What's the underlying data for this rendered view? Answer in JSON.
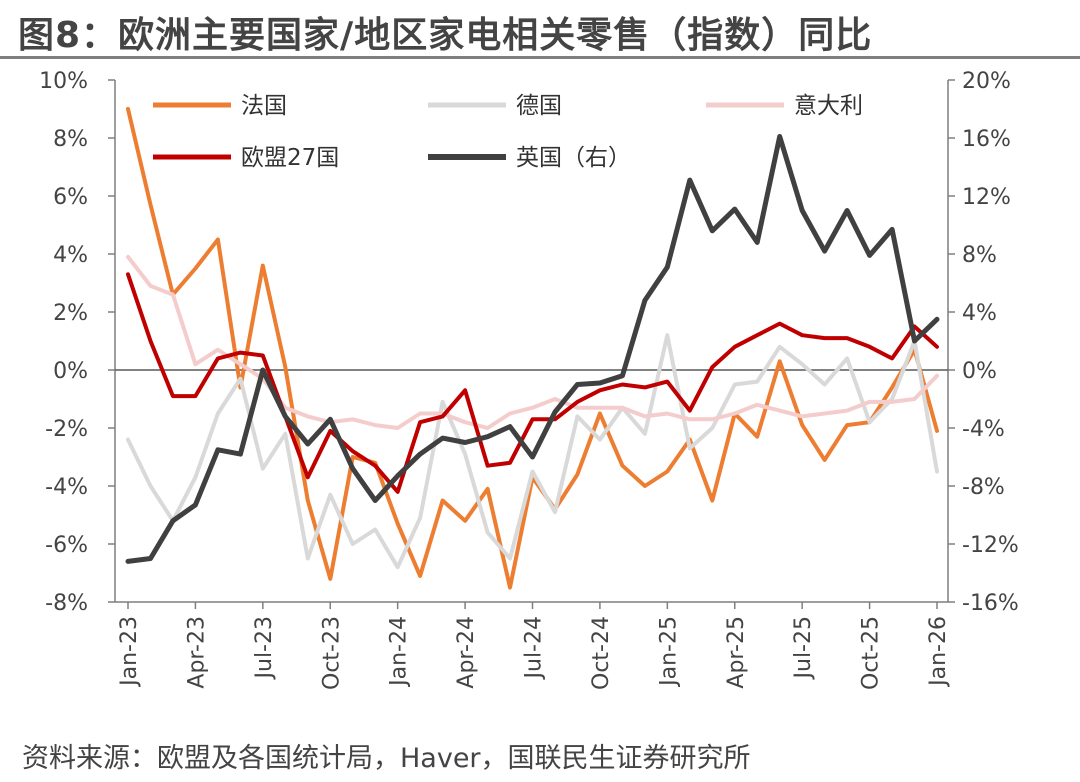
{
  "chart_data": {
    "type": "line",
    "title": "图8：欧洲主要国家/地区家电相关零售（指数）同比",
    "source": "资料来源：欧盟及各国统计局，Haver，国联民生证券研究所",
    "x": [
      "Jan-23",
      "Feb-23",
      "Mar-23",
      "Apr-23",
      "May-23",
      "Jun-23",
      "Jul-23",
      "Aug-23",
      "Sep-23",
      "Oct-23",
      "Nov-23",
      "Dec-23",
      "Jan-24",
      "Feb-24",
      "Mar-24",
      "Apr-24",
      "May-24",
      "Jun-24",
      "Jul-24",
      "Aug-24",
      "Sep-24",
      "Oct-24",
      "Nov-24",
      "Dec-24",
      "Jan-25",
      "Feb-25",
      "Mar-25",
      "Apr-25",
      "May-25",
      "Jun-25",
      "Jul-25",
      "Aug-25",
      "Sep-25",
      "Oct-25",
      "Nov-25",
      "Dec-25",
      "Jan-26"
    ],
    "x_tick_labels": [
      "Jan-23",
      "Apr-23",
      "Jul-23",
      "Oct-23",
      "Jan-24",
      "Apr-24",
      "Jul-24",
      "Oct-24",
      "Jan-25",
      "Apr-25",
      "Jul-25",
      "Oct-25",
      "Jan-26"
    ],
    "y_left": {
      "ylim": [
        -8,
        10
      ],
      "ticks": [
        10,
        8,
        6,
        4,
        2,
        0,
        -2,
        -4,
        -6,
        -8
      ],
      "tick_labels": [
        "10%",
        "8%",
        "6%",
        "4%",
        "2%",
        "0%",
        "-2%",
        "-4%",
        "-6%",
        "-8%"
      ]
    },
    "y_right": {
      "ylim": [
        -16,
        20
      ],
      "ticks": [
        20,
        16,
        12,
        8,
        4,
        0,
        -4,
        -8,
        -12,
        -16
      ],
      "tick_labels": [
        "20%",
        "16%",
        "12%",
        "8%",
        "4%",
        "0%",
        "-4%",
        "-8%",
        "-12%",
        "-16%"
      ]
    },
    "legend_position": "top",
    "series": [
      {
        "name": "法国",
        "axis": "left",
        "color": "#ED7D31",
        "width": 4,
        "values": [
          9.0,
          5.7,
          2.6,
          3.5,
          4.5,
          -0.6,
          3.6,
          0.1,
          -4.5,
          -7.2,
          -3.0,
          -3.2,
          -5.3,
          -7.1,
          -4.5,
          -5.2,
          -4.1,
          -7.5,
          -3.7,
          -4.8,
          -3.6,
          -1.5,
          -3.3,
          -4.0,
          -3.5,
          -2.4,
          -4.5,
          -1.5,
          -2.3,
          0.3,
          -1.9,
          -3.1,
          -1.9,
          -1.8,
          -0.6,
          0.7,
          -2.1
        ]
      },
      {
        "name": "德国",
        "axis": "left",
        "color": "#D9D9D9",
        "width": 4,
        "values": [
          -2.4,
          -4.0,
          -5.2,
          -3.7,
          -1.5,
          -0.3,
          -3.4,
          -2.2,
          -6.5,
          -4.3,
          -6.0,
          -5.5,
          -6.8,
          -5.1,
          -1.1,
          -2.9,
          -5.6,
          -6.5,
          -3.5,
          -4.9,
          -1.6,
          -2.4,
          -1.3,
          -2.2,
          1.2,
          -2.7,
          -2.0,
          -0.5,
          -0.4,
          0.8,
          0.2,
          -0.5,
          0.4,
          -1.8,
          -1.0,
          1.0,
          -3.5
        ]
      },
      {
        "name": "意大利",
        "axis": "left",
        "color": "#F4CCCC",
        "width": 4,
        "values": [
          3.9,
          2.9,
          2.6,
          0.2,
          0.7,
          0.2,
          -0.3,
          -1.3,
          -1.6,
          -1.8,
          -1.7,
          -1.9,
          -2.0,
          -1.5,
          -1.5,
          -1.8,
          -2.0,
          -1.5,
          -1.3,
          -1.0,
          -1.3,
          -1.3,
          -1.3,
          -1.6,
          -1.5,
          -1.7,
          -1.7,
          -1.5,
          -1.2,
          -1.4,
          -1.6,
          -1.5,
          -1.4,
          -1.1,
          -1.1,
          -1.0,
          -0.2
        ]
      },
      {
        "name": "欧盟27国",
        "axis": "left",
        "color": "#C00000",
        "width": 4,
        "values": [
          3.3,
          1.0,
          -0.9,
          -0.9,
          0.4,
          0.6,
          0.5,
          -1.6,
          -3.7,
          -2.1,
          -2.8,
          -3.3,
          -4.2,
          -1.8,
          -1.6,
          -0.7,
          -3.3,
          -3.2,
          -1.7,
          -1.7,
          -1.1,
          -0.7,
          -0.5,
          -0.6,
          -0.4,
          -1.4,
          0.1,
          0.8,
          1.2,
          1.6,
          1.2,
          1.1,
          1.1,
          0.8,
          0.4,
          1.5,
          0.8
        ]
      },
      {
        "name": "英国（右）",
        "axis": "right",
        "color": "#404040",
        "width": 5,
        "values": [
          -13.2,
          -13.0,
          -10.4,
          -9.3,
          -5.5,
          -5.8,
          0.0,
          -3.2,
          -5.1,
          -3.4,
          -6.8,
          -9.0,
          -7.3,
          -5.8,
          -4.7,
          -5.0,
          -4.6,
          -3.9,
          -6.0,
          -2.9,
          -1.0,
          -0.9,
          -0.4,
          4.8,
          7.1,
          13.1,
          9.6,
          11.1,
          8.8,
          16.1,
          11.0,
          8.2,
          11.0,
          7.9,
          9.7,
          2.0,
          3.5
        ]
      }
    ]
  }
}
